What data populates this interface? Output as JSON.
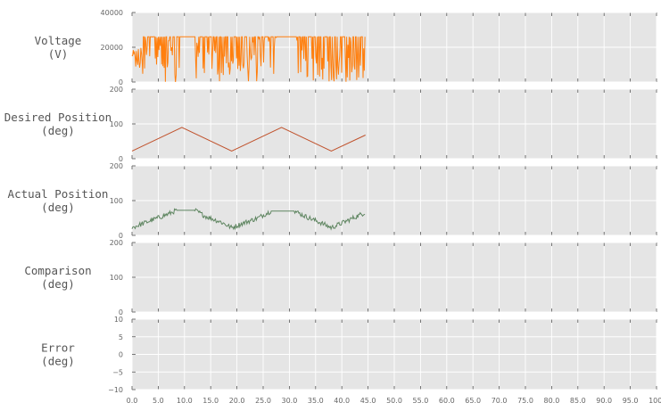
{
  "chart_data": {
    "type": "line",
    "xlim": [
      0,
      100
    ],
    "x_ticks": [
      "0.0",
      "5.0",
      "10.0",
      "15.0",
      "20.0",
      "25.0",
      "30.0",
      "35.0",
      "40.0",
      "45.0",
      "50.0",
      "55.0",
      "60.0",
      "65.0",
      "70.0",
      "75.0",
      "80.0",
      "85.0",
      "90.0",
      "95.0",
      "100."
    ],
    "grid": true,
    "colors": {
      "background": "#e5e5e5",
      "grid": "#ffffff",
      "voltage": "#ff7f0e",
      "desired": "#c0522c",
      "actual": "#5e8560"
    },
    "panels": [
      {
        "ylabel": [
          "Voltage",
          "(V)"
        ],
        "ylim": [
          0,
          40000
        ],
        "y_ticks": [
          "0",
          "20000",
          "40000"
        ],
        "series": [
          {
            "color_key": "voltage",
            "description_points": [
              [
                0,
                10000
              ],
              [
                1,
                26000
              ],
              [
                9,
                26000
              ],
              [
                11,
                26000
              ],
              [
                16,
                26000
              ],
              [
                19,
                8000
              ],
              [
                21,
                26000
              ],
              [
                28,
                26000
              ],
              [
                30,
                26000
              ],
              [
                35,
                26000
              ],
              [
                38,
                7000
              ],
              [
                40,
                26000
              ],
              [
                44.5,
                26000
              ]
            ],
            "style": "switching"
          }
        ]
      },
      {
        "ylabel": [
          "Desired Position",
          "(deg)"
        ],
        "ylim": [
          0,
          200
        ],
        "y_ticks": [
          "0",
          "100",
          "200"
        ],
        "series": [
          {
            "color_key": "desired",
            "points": [
              [
                0,
                22
              ],
              [
                9.5,
                90
              ],
              [
                19,
                22
              ],
              [
                28.5,
                90
              ],
              [
                38,
                22
              ],
              [
                44.5,
                68
              ]
            ]
          }
        ]
      },
      {
        "ylabel": [
          "Actual Position",
          "(deg)"
        ],
        "ylim": [
          0,
          200
        ],
        "y_ticks": [
          "0",
          "100",
          "200"
        ],
        "series": [
          {
            "color_key": "actual",
            "points": [
              [
                0,
                22
              ],
              [
                4,
                45
              ],
              [
                7,
                62
              ],
              [
                8.5,
                72
              ],
              [
                12,
                72
              ],
              [
                14,
                55
              ],
              [
                17,
                38
              ],
              [
                19,
                22
              ],
              [
                21,
                34
              ],
              [
                24,
                50
              ],
              [
                26.5,
                70
              ],
              [
                31,
                70
              ],
              [
                33,
                55
              ],
              [
                36,
                36
              ],
              [
                38,
                22
              ],
              [
                41,
                42
              ],
              [
                44.5,
                66
              ]
            ],
            "style": "noisy"
          }
        ]
      },
      {
        "ylabel": [
          "Comparison",
          "(deg)"
        ],
        "ylim": [
          0,
          200
        ],
        "y_ticks": [
          "0",
          "100",
          "200"
        ],
        "series": []
      },
      {
        "ylabel": [
          "Error",
          "(deg)"
        ],
        "ylim": [
          -10,
          10
        ],
        "y_ticks": [
          "−10",
          "−5",
          "0",
          "5",
          "10"
        ],
        "series": []
      }
    ]
  }
}
